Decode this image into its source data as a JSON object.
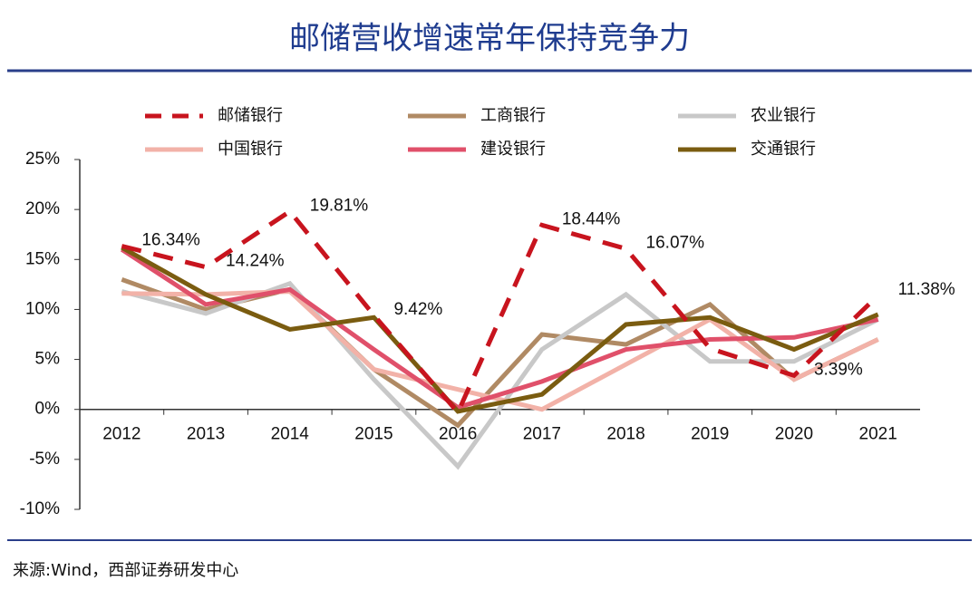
{
  "chart_data": {
    "type": "line",
    "title": "邮储营收增速常年保持竞争力",
    "source": "来源:Wind，西部证券研发中心",
    "categories": [
      "2012",
      "2013",
      "2014",
      "2015",
      "2016",
      "2017",
      "2018",
      "2019",
      "2020",
      "2021"
    ],
    "ylim": [
      -10,
      25
    ],
    "yticks": [
      {
        "value": -10,
        "label": "-10%"
      },
      {
        "value": -5,
        "label": "-5%"
      },
      {
        "value": 0,
        "label": "0%"
      },
      {
        "value": 5,
        "label": "5%"
      },
      {
        "value": 10,
        "label": "10%"
      },
      {
        "value": 15,
        "label": "15%"
      },
      {
        "value": 20,
        "label": "20%"
      },
      {
        "value": 25,
        "label": "25%"
      }
    ],
    "grid": false,
    "series": [
      {
        "name": "邮储银行",
        "color": "#c8141e",
        "style": "dashed",
        "values": [
          16.34,
          14.24,
          19.81,
          9.42,
          -0.3,
          18.44,
          16.07,
          6.1,
          3.39,
          11.38
        ],
        "value_labels": [
          "16.34%",
          "14.24%",
          "19.81%",
          "9.42%",
          null,
          "18.44%",
          "16.07%",
          null,
          "3.39%",
          "11.38%"
        ]
      },
      {
        "name": "工商银行",
        "color": "#b08a64",
        "style": "solid",
        "values": [
          13,
          10,
          12,
          4,
          -1.6,
          7.5,
          6.5,
          10.5,
          3,
          7
        ]
      },
      {
        "name": "农业银行",
        "color": "#c8c8c8",
        "style": "solid",
        "values": [
          11.8,
          9.6,
          12.6,
          3,
          -5.7,
          6,
          11.5,
          4.8,
          4.8,
          9
        ]
      },
      {
        "name": "中国银行",
        "color": "#f2b2a8",
        "style": "solid",
        "values": [
          11.6,
          11.5,
          11.8,
          4,
          2,
          0,
          4.5,
          9,
          3,
          7
        ]
      },
      {
        "name": "建设银行",
        "color": "#e0506a",
        "style": "solid",
        "values": [
          16,
          10.5,
          12,
          6,
          0.2,
          2.8,
          6,
          7,
          7.2,
          9
        ]
      },
      {
        "name": "交通银行",
        "color": "#7a5c10",
        "style": "solid",
        "values": [
          16.2,
          11.5,
          8,
          9.2,
          -0.2,
          1.5,
          8.5,
          9.2,
          6,
          9.5
        ]
      }
    ]
  }
}
